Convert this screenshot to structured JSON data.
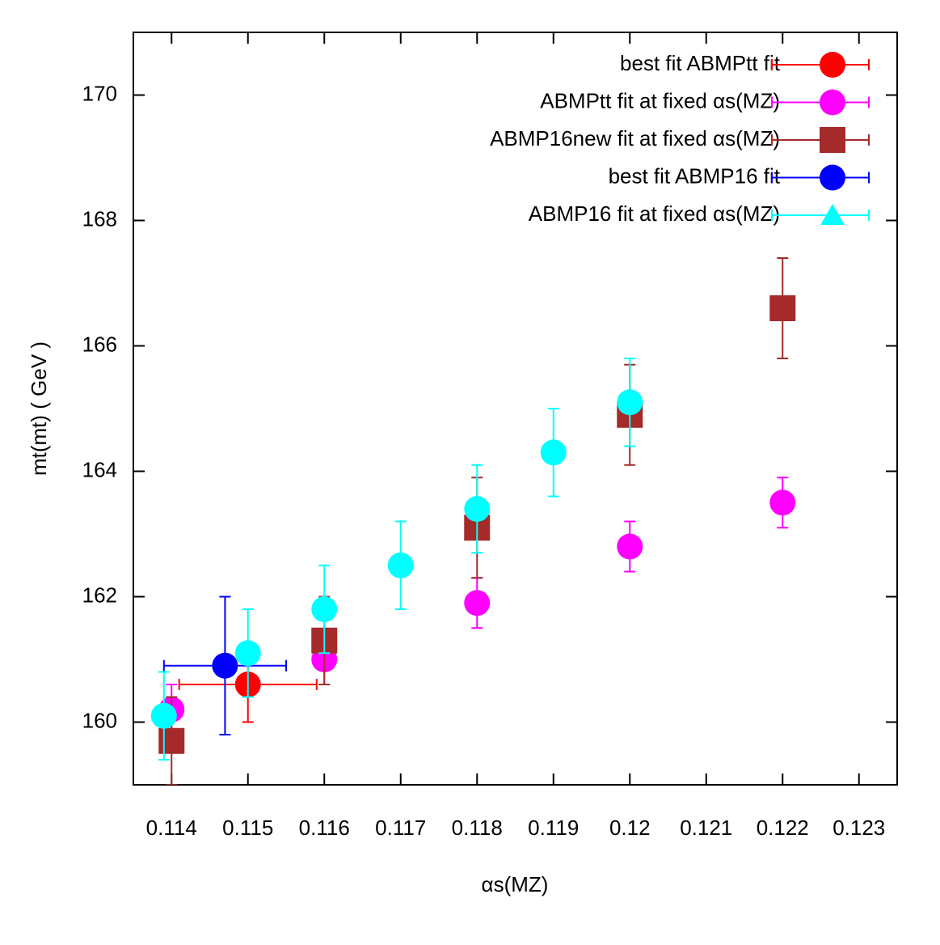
{
  "chart_data": {
    "type": "scatter",
    "x_label": "αs(MZ)",
    "y_label": "mt(mt)   ( GeV )",
    "xlim": [
      0.1135,
      0.1235
    ],
    "ylim": [
      159,
      171
    ],
    "xticks": [
      0.114,
      0.115,
      0.116,
      0.117,
      0.118,
      0.119,
      0.12,
      0.121,
      0.122,
      0.123
    ],
    "yticks": [
      160,
      162,
      164,
      166,
      168,
      170
    ],
    "legend": "top-right",
    "series": [
      {
        "name": "best fit ABMPtt fit",
        "color": "#ff0000",
        "marker": "circle",
        "legend_marker": "circle",
        "x": [
          0.115
        ],
        "values": [
          160.6
        ],
        "yerr": [
          0.6
        ],
        "xerr": [
          0.0009
        ]
      },
      {
        "name": "ABMPtt fit at fixed αs(MZ)",
        "color": "#ff00ff",
        "marker": "circle",
        "legend_marker": "circle",
        "x": [
          0.114,
          0.116,
          0.118,
          0.12,
          0.122
        ],
        "values": [
          160.2,
          161.0,
          161.9,
          162.8,
          163.5
        ],
        "yerr": [
          0.4,
          0.4,
          0.4,
          0.4,
          0.4
        ]
      },
      {
        "name": "ABMP16new fit at fixed αs(MZ)",
        "color": "#a52a2a",
        "marker": "square",
        "legend_marker": "square",
        "x": [
          0.114,
          0.116,
          0.118,
          0.12,
          0.122
        ],
        "values": [
          159.7,
          161.3,
          163.1,
          164.9,
          166.6
        ],
        "yerr": [
          0.7,
          0.7,
          0.8,
          0.8,
          0.8
        ]
      },
      {
        "name": "best fit ABMP16 fit",
        "color": "#0000ff",
        "marker": "circle",
        "legend_marker": "circle",
        "x": [
          0.1147
        ],
        "values": [
          160.9
        ],
        "yerr": [
          1.1
        ],
        "xerr": [
          0.0008
        ]
      },
      {
        "name": "ABMP16 fit at fixed αs(MZ)",
        "color": "#00ffff",
        "marker": "circle",
        "legend_marker": "triangle",
        "x": [
          0.1139,
          0.115,
          0.116,
          0.117,
          0.118,
          0.119,
          0.12
        ],
        "values": [
          160.1,
          161.1,
          161.8,
          162.5,
          163.4,
          164.3,
          165.1
        ],
        "yerr": [
          0.7,
          0.7,
          0.7,
          0.7,
          0.7,
          0.7,
          0.7
        ]
      }
    ]
  }
}
